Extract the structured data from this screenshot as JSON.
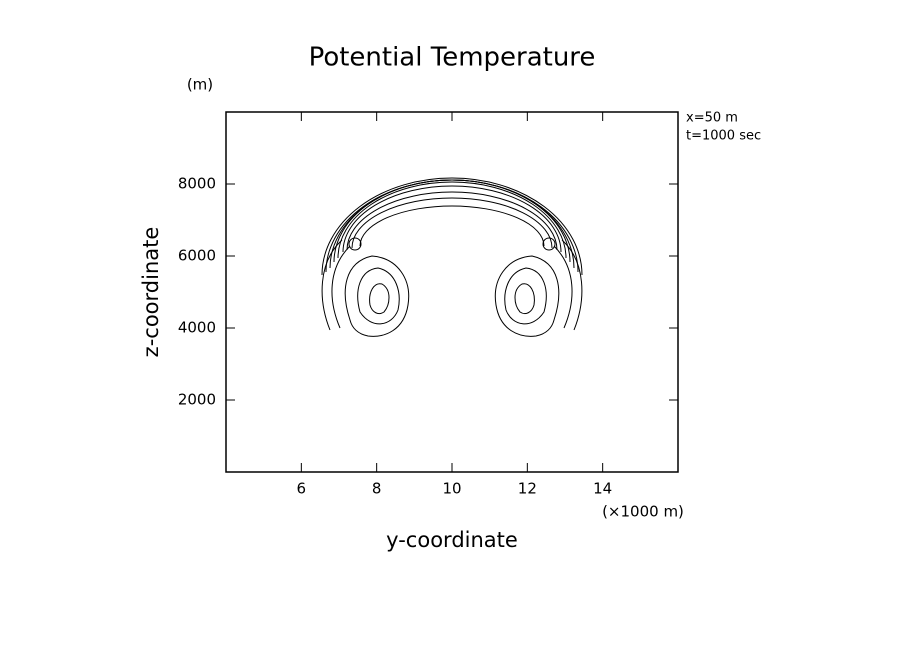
{
  "chart_data": {
    "type": "contour",
    "title": "Potential Temperature",
    "x_label": "y-coordinate",
    "x_unit": "(×1000 m)",
    "y_label": "z-coordinate",
    "y_unit": "(m)",
    "annotations": [
      "x=50 m",
      "t=1000 sec"
    ],
    "xlim": [
      4,
      16
    ],
    "xticks": [
      6,
      8,
      10,
      12,
      14
    ],
    "ylim": [
      0,
      10000
    ],
    "yticks": [
      2000,
      4000,
      6000,
      8000
    ]
  }
}
